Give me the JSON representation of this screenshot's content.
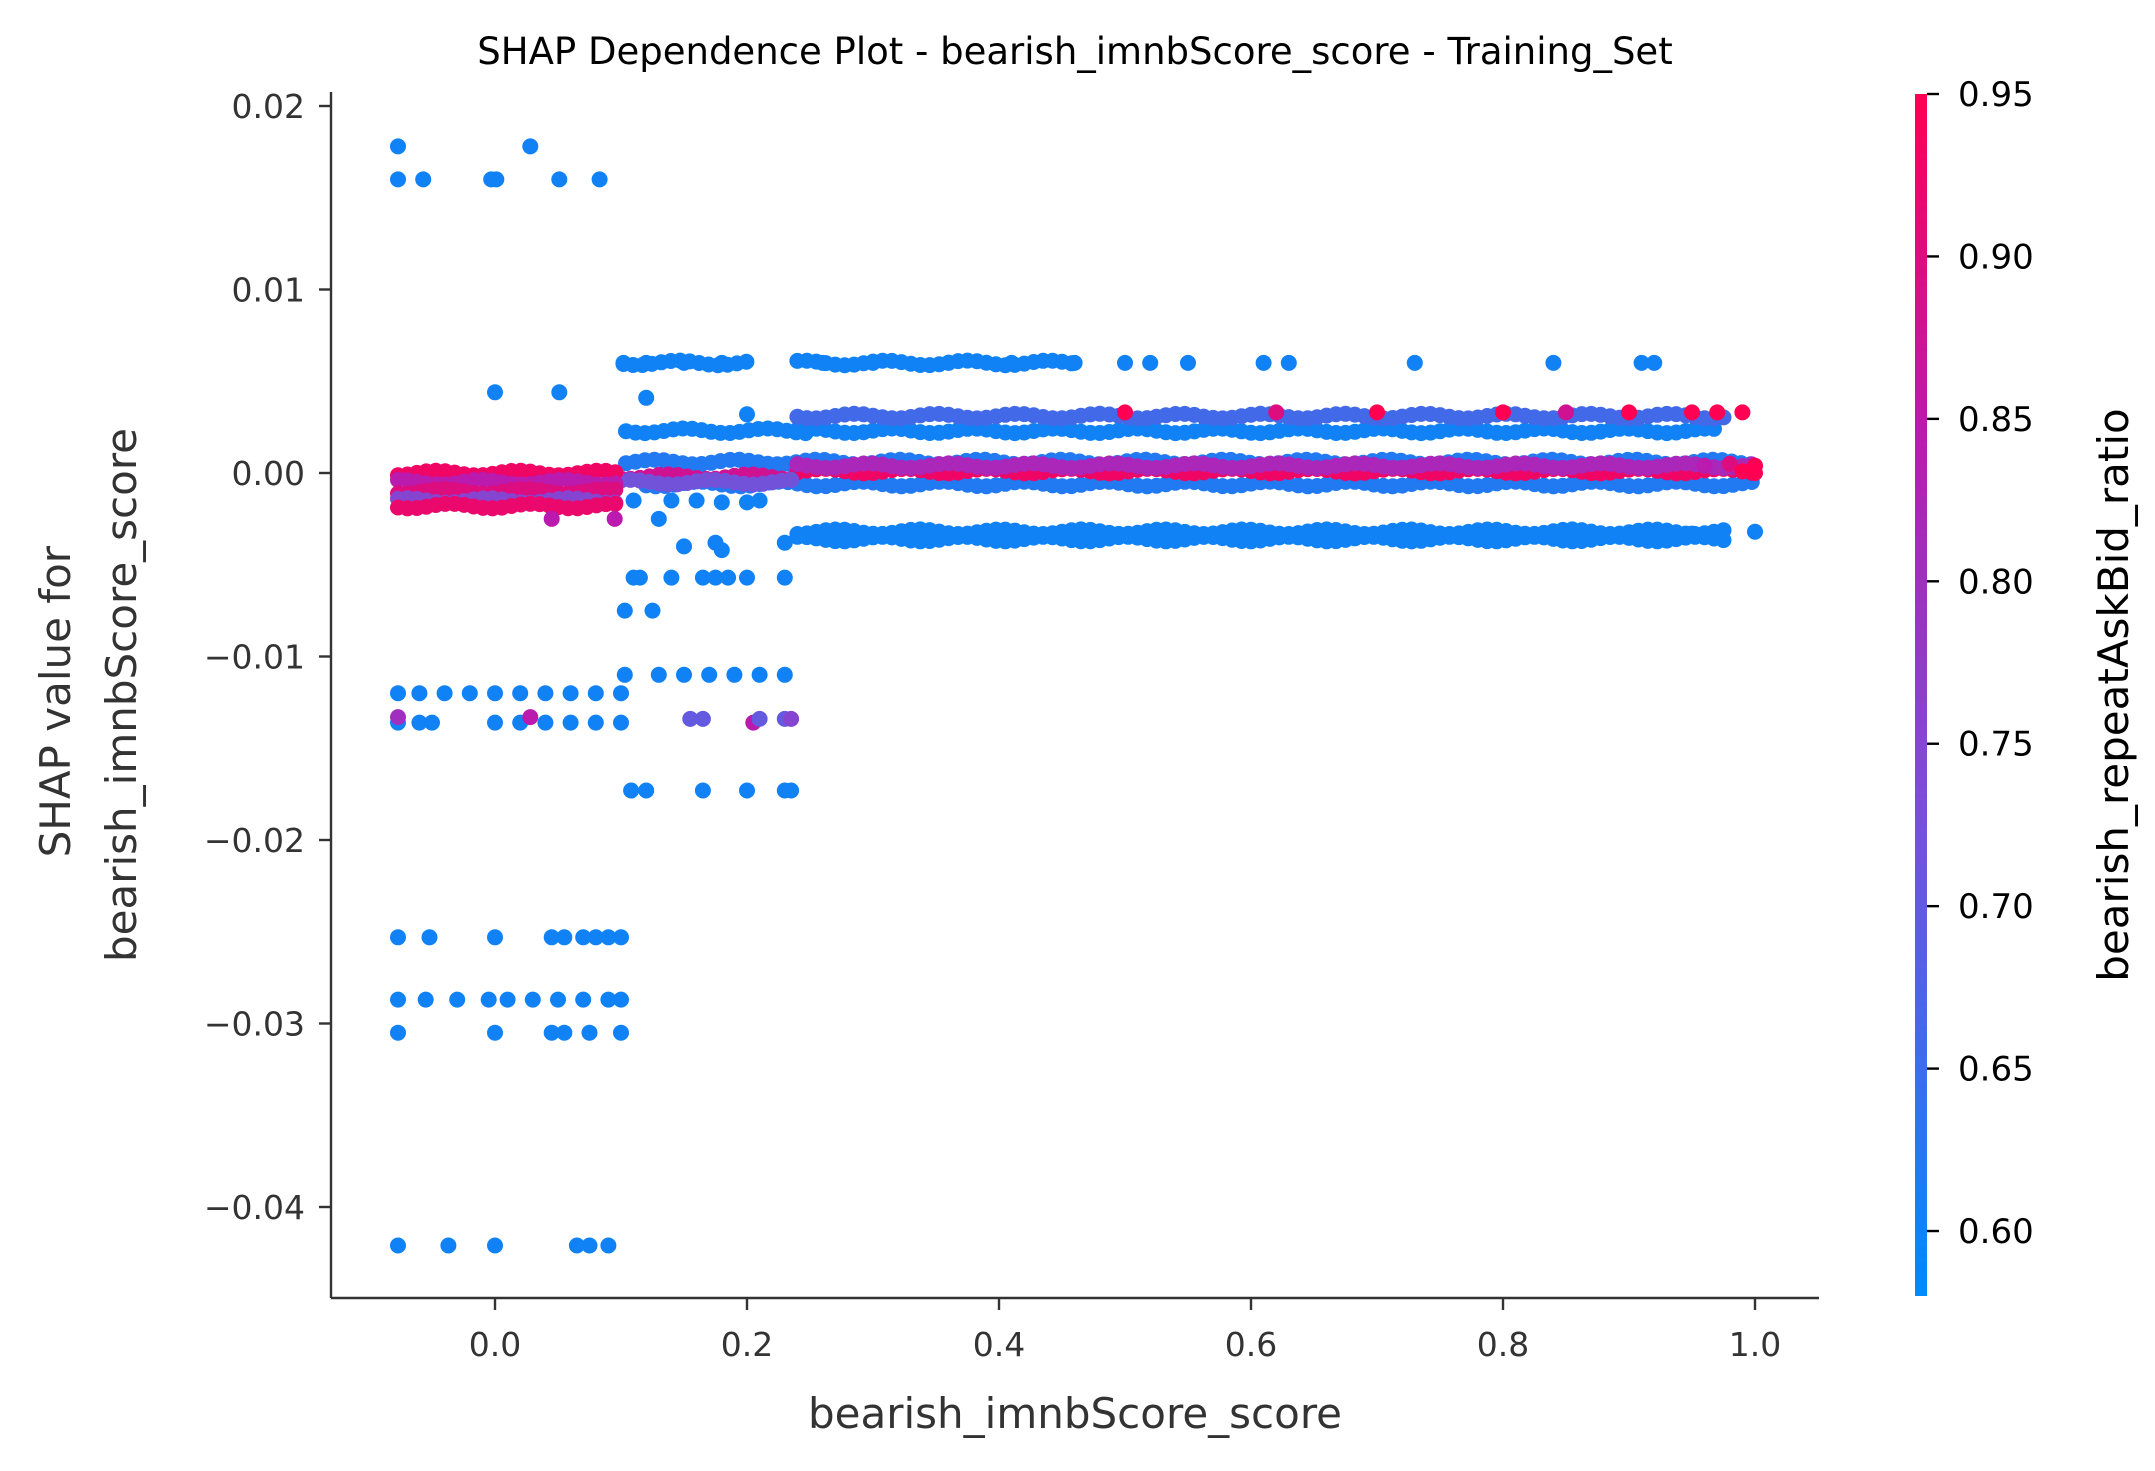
{
  "chart_data": {
    "type": "scatter",
    "title": "SHAP Dependence Plot - bearish_imnbScore_score - Training_Set",
    "xlabel": "bearish_imnbScore_score",
    "ylabel_lines": [
      "SHAP value for",
      "bearish_imnbScore_score"
    ],
    "xlim": [
      -0.13,
      1.05
    ],
    "ylim": [
      -0.045,
      0.0205
    ],
    "x_ticks": [
      0.0,
      0.2,
      0.4,
      0.6,
      0.8,
      1.0
    ],
    "x_tick_labels": [
      "0.0",
      "0.2",
      "0.4",
      "0.6",
      "0.8",
      "1.0"
    ],
    "y_ticks": [
      0.02,
      0.01,
      0.0,
      -0.01,
      -0.02,
      -0.03,
      -0.04
    ],
    "y_tick_labels": [
      "0.02",
      "0.01",
      "0.00",
      "−0.01",
      "−0.02",
      "−0.03",
      "−0.04"
    ],
    "grid": false,
    "colorbar": {
      "label": "bearish_repeatAskBid_ratio",
      "range": [
        0.58,
        0.95
      ],
      "ticks": [
        0.95,
        0.9,
        0.85,
        0.8,
        0.75,
        0.7,
        0.65,
        0.6
      ],
      "tick_labels": [
        "0.95",
        "0.90",
        "0.85",
        "0.80",
        "0.75",
        "0.70",
        "0.65",
        "0.60"
      ],
      "colormap": [
        "#008afb",
        "#7a4fd8",
        "#b81bb0",
        "#ff0052"
      ]
    },
    "points": [
      [
        -0.077,
        0.0178,
        0.6
      ],
      [
        0.028,
        0.0178,
        0.6
      ],
      [
        -0.077,
        0.016,
        0.6
      ],
      [
        -0.057,
        0.016,
        0.6
      ],
      [
        -0.003,
        0.016,
        0.6
      ],
      [
        0.001,
        0.016,
        0.6
      ],
      [
        0.051,
        0.016,
        0.6
      ],
      [
        0.083,
        0.016,
        0.6
      ],
      [
        0.0,
        0.0044,
        0.6
      ],
      [
        0.051,
        0.0044,
        0.6
      ],
      [
        0.12,
        0.0041,
        0.6
      ],
      [
        0.2,
        0.0032,
        0.6
      ],
      [
        0.102,
        0.006,
        0.6
      ],
      [
        0.12,
        0.006,
        0.6
      ],
      [
        0.15,
        0.006,
        0.6
      ],
      [
        0.18,
        0.006,
        0.6
      ],
      [
        0.26,
        0.006,
        0.6
      ],
      [
        0.3,
        0.006,
        0.6
      ],
      [
        0.36,
        0.006,
        0.6
      ],
      [
        0.41,
        0.006,
        0.6
      ],
      [
        0.46,
        0.006,
        0.6
      ],
      [
        0.5,
        0.006,
        0.6
      ],
      [
        0.52,
        0.006,
        0.6
      ],
      [
        0.55,
        0.006,
        0.6
      ],
      [
        0.61,
        0.006,
        0.6
      ],
      [
        0.63,
        0.006,
        0.6
      ],
      [
        0.73,
        0.006,
        0.6
      ],
      [
        0.84,
        0.006,
        0.6
      ],
      [
        0.91,
        0.006,
        0.6
      ],
      [
        0.92,
        0.006,
        0.6
      ],
      [
        0.7,
        0.0033,
        0.95
      ],
      [
        0.8,
        0.0033,
        0.95
      ],
      [
        0.9,
        0.0033,
        0.95
      ],
      [
        0.95,
        0.0033,
        0.95
      ],
      [
        0.97,
        0.0033,
        0.95
      ],
      [
        0.99,
        0.0033,
        0.95
      ],
      [
        0.5,
        0.0033,
        0.95
      ],
      [
        0.62,
        0.0033,
        0.9
      ],
      [
        0.85,
        0.0033,
        0.88
      ],
      [
        1.0,
        0.0004,
        0.95
      ],
      [
        1.0,
        0.0,
        0.95
      ],
      [
        0.98,
        0.0005,
        0.9
      ],
      [
        0.96,
        0.0004,
        0.85
      ],
      [
        0.99,
        0.0001,
        0.95
      ],
      [
        0.045,
        -0.0025,
        0.85
      ],
      [
        0.095,
        -0.0025,
        0.85
      ],
      [
        0.11,
        -0.0015,
        0.6
      ],
      [
        0.13,
        -0.0025,
        0.6
      ],
      [
        0.14,
        -0.0015,
        0.6
      ],
      [
        0.16,
        -0.0015,
        0.6
      ],
      [
        0.18,
        -0.0016,
        0.6
      ],
      [
        0.2,
        -0.0016,
        0.6
      ],
      [
        0.21,
        -0.0015,
        0.6
      ],
      [
        0.15,
        -0.004,
        0.6
      ],
      [
        0.175,
        -0.0038,
        0.6
      ],
      [
        0.18,
        -0.0042,
        0.6
      ],
      [
        0.23,
        -0.0038,
        0.6
      ],
      [
        1.0,
        -0.0032,
        0.6
      ],
      [
        0.95,
        -0.0033,
        0.6
      ],
      [
        0.94,
        -0.0034,
        0.6
      ],
      [
        0.91,
        -0.0033,
        0.6
      ],
      [
        0.11,
        -0.0057,
        0.6
      ],
      [
        0.115,
        -0.0057,
        0.6
      ],
      [
        0.14,
        -0.0057,
        0.6
      ],
      [
        0.165,
        -0.0057,
        0.6
      ],
      [
        0.175,
        -0.0057,
        0.6
      ],
      [
        0.185,
        -0.0057,
        0.6
      ],
      [
        0.2,
        -0.0057,
        0.6
      ],
      [
        0.23,
        -0.0057,
        0.6
      ],
      [
        0.103,
        -0.0075,
        0.6
      ],
      [
        0.125,
        -0.0075,
        0.6
      ],
      [
        0.103,
        -0.011,
        0.6
      ],
      [
        0.13,
        -0.011,
        0.6
      ],
      [
        0.15,
        -0.011,
        0.6
      ],
      [
        0.17,
        -0.011,
        0.6
      ],
      [
        0.19,
        -0.011,
        0.6
      ],
      [
        0.21,
        -0.011,
        0.6
      ],
      [
        0.23,
        -0.011,
        0.6
      ],
      [
        -0.077,
        -0.012,
        0.6
      ],
      [
        -0.06,
        -0.012,
        0.6
      ],
      [
        -0.04,
        -0.012,
        0.6
      ],
      [
        -0.02,
        -0.012,
        0.6
      ],
      [
        0.0,
        -0.012,
        0.6
      ],
      [
        0.02,
        -0.012,
        0.6
      ],
      [
        0.04,
        -0.012,
        0.6
      ],
      [
        0.06,
        -0.012,
        0.6
      ],
      [
        0.08,
        -0.012,
        0.6
      ],
      [
        0.1,
        -0.012,
        0.6
      ],
      [
        -0.077,
        -0.0136,
        0.6
      ],
      [
        -0.06,
        -0.0136,
        0.6
      ],
      [
        -0.05,
        -0.0136,
        0.6
      ],
      [
        0.0,
        -0.0136,
        0.6
      ],
      [
        0.02,
        -0.0136,
        0.6
      ],
      [
        0.04,
        -0.0136,
        0.6
      ],
      [
        0.06,
        -0.0136,
        0.6
      ],
      [
        0.08,
        -0.0136,
        0.6
      ],
      [
        0.1,
        -0.0136,
        0.6
      ],
      [
        -0.077,
        -0.0133,
        0.8
      ],
      [
        0.028,
        -0.0133,
        0.85
      ],
      [
        0.155,
        -0.0134,
        0.7
      ],
      [
        0.165,
        -0.0134,
        0.7
      ],
      [
        0.205,
        -0.0136,
        0.85
      ],
      [
        0.21,
        -0.0134,
        0.7
      ],
      [
        0.23,
        -0.0134,
        0.7
      ],
      [
        0.235,
        -0.0134,
        0.75
      ],
      [
        0.108,
        -0.0173,
        0.6
      ],
      [
        0.12,
        -0.0173,
        0.6
      ],
      [
        0.165,
        -0.0173,
        0.6
      ],
      [
        0.2,
        -0.0173,
        0.6
      ],
      [
        0.23,
        -0.0173,
        0.6
      ],
      [
        0.235,
        -0.0173,
        0.6
      ],
      [
        -0.077,
        -0.0253,
        0.6
      ],
      [
        -0.052,
        -0.0253,
        0.6
      ],
      [
        0.0,
        -0.0253,
        0.6
      ],
      [
        0.045,
        -0.0253,
        0.6
      ],
      [
        0.055,
        -0.0253,
        0.6
      ],
      [
        0.07,
        -0.0253,
        0.6
      ],
      [
        0.08,
        -0.0253,
        0.6
      ],
      [
        0.09,
        -0.0253,
        0.6
      ],
      [
        0.1,
        -0.0253,
        0.6
      ],
      [
        -0.077,
        -0.0287,
        0.6
      ],
      [
        -0.055,
        -0.0287,
        0.6
      ],
      [
        -0.03,
        -0.0287,
        0.6
      ],
      [
        -0.005,
        -0.0287,
        0.6
      ],
      [
        0.01,
        -0.0287,
        0.6
      ],
      [
        0.03,
        -0.0287,
        0.6
      ],
      [
        0.05,
        -0.0287,
        0.6
      ],
      [
        0.07,
        -0.0287,
        0.6
      ],
      [
        0.09,
        -0.0287,
        0.6
      ],
      [
        0.1,
        -0.0287,
        0.6
      ],
      [
        -0.077,
        -0.0305,
        0.6
      ],
      [
        0.0,
        -0.0305,
        0.6
      ],
      [
        0.045,
        -0.0305,
        0.6
      ],
      [
        0.055,
        -0.0305,
        0.6
      ],
      [
        0.075,
        -0.0305,
        0.6
      ],
      [
        0.1,
        -0.0305,
        0.6
      ],
      [
        -0.077,
        -0.0421,
        0.6
      ],
      [
        -0.037,
        -0.0421,
        0.6
      ],
      [
        0.0,
        -0.0421,
        0.6
      ],
      [
        0.065,
        -0.0421,
        0.6
      ],
      [
        0.075,
        -0.0421,
        0.6
      ],
      [
        0.09,
        -0.0421,
        0.6
      ]
    ],
    "bands": [
      {
        "x": [
          0.102,
          0.2
        ],
        "y": 0.006,
        "color": 0.6
      },
      {
        "x": [
          0.24,
          0.46
        ],
        "y": 0.006,
        "color": 0.6
      },
      {
        "x": [
          0.104,
          0.25
        ],
        "y": 0.0023,
        "color": 0.6
      },
      {
        "x": [
          0.24,
          0.97
        ],
        "y": 0.0023,
        "color": 0.6
      },
      {
        "x": [
          0.24,
          0.98
        ],
        "y": 0.0031,
        "color": 0.66
      },
      {
        "x": [
          0.104,
          1.0
        ],
        "y": 0.0006,
        "color": 0.62
      },
      {
        "x": [
          0.12,
          1.0
        ],
        "y": -0.0006,
        "color": 0.62
      },
      {
        "x": [
          0.24,
          1.0
        ],
        "y": 0.0001,
        "color": 0.93
      },
      {
        "x": [
          0.24,
          1.0
        ],
        "y": 0.0004,
        "color": 0.82
      },
      {
        "x": [
          0.1,
          0.24
        ],
        "y": -0.0002,
        "color": 0.88
      },
      {
        "x": [
          0.1,
          0.24
        ],
        "y": -0.0005,
        "color": 0.72
      },
      {
        "x": [
          0.24,
          0.98
        ],
        "y": -0.0032,
        "color": 0.6
      },
      {
        "x": [
          0.24,
          0.98
        ],
        "y": -0.0036,
        "color": 0.6
      },
      {
        "x": [
          -0.077,
          0.1
        ],
        "y": 0.0,
        "color": 0.93
      },
      {
        "x": [
          -0.077,
          0.1
        ],
        "y": -0.0005,
        "color": 0.85
      },
      {
        "x": [
          -0.077,
          0.1
        ],
        "y": -0.001,
        "color": 0.9
      },
      {
        "x": [
          -0.077,
          0.1
        ],
        "y": -0.0015,
        "color": 0.75
      },
      {
        "x": [
          -0.077,
          0.1
        ],
        "y": -0.0018,
        "color": 0.92
      }
    ]
  }
}
